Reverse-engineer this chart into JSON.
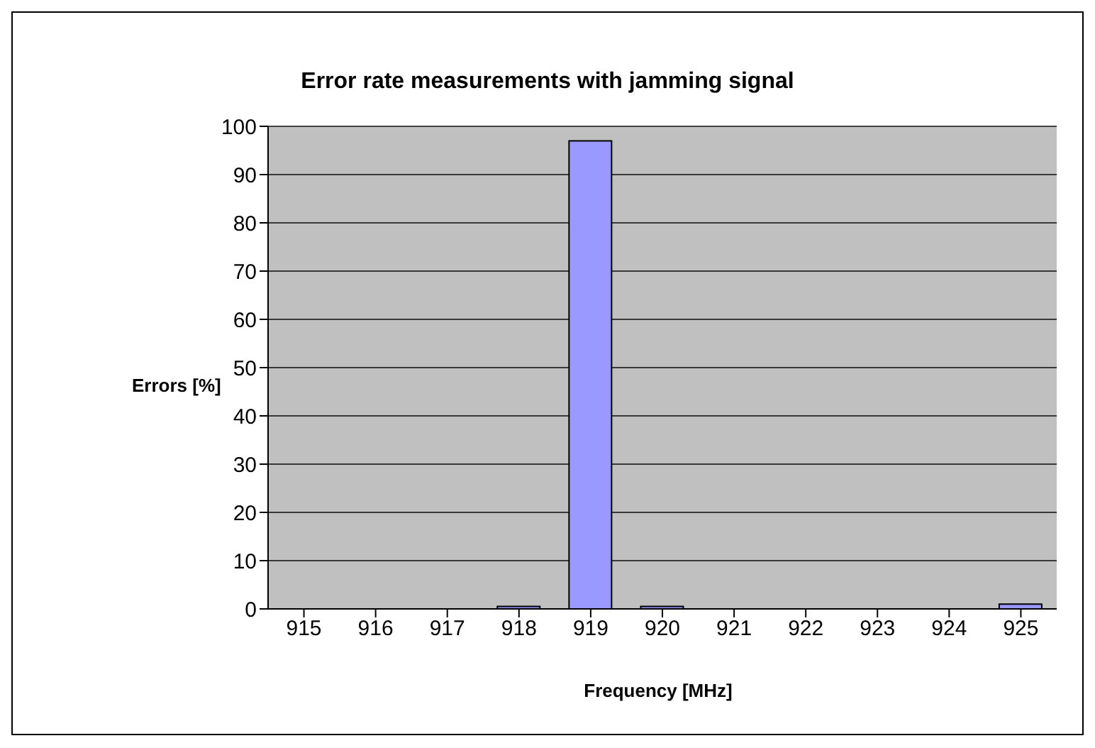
{
  "chart_data": {
    "type": "bar",
    "title": "Error rate measurements with jamming signal",
    "xlabel": "Frequency [MHz]",
    "ylabel": "Errors [%]",
    "categories": [
      "915",
      "916",
      "917",
      "918",
      "919",
      "920",
      "921",
      "922",
      "923",
      "924",
      "925"
    ],
    "values": [
      0,
      0,
      0,
      0.5,
      97,
      0.5,
      0,
      0,
      0,
      0,
      1
    ],
    "color": "#9999ff",
    "ylim": [
      0,
      100
    ],
    "yticks": [
      0,
      10,
      20,
      30,
      40,
      50,
      60,
      70,
      80,
      90,
      100
    ],
    "grid": "y"
  }
}
